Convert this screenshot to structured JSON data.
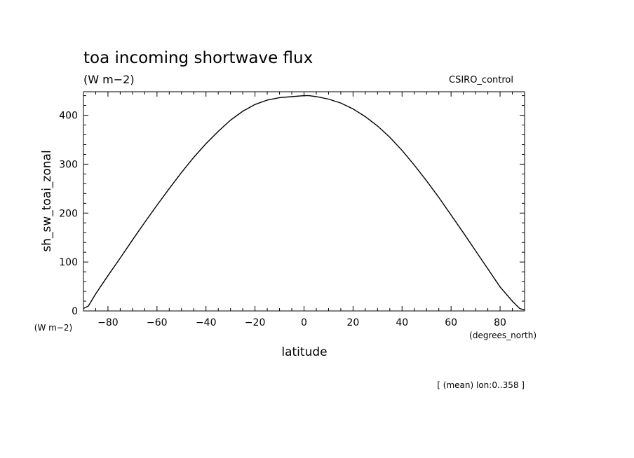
{
  "chart_data": {
    "type": "line",
    "title": "toa incoming shortwave flux",
    "subtitle": "(W m−2)",
    "run_label": "CSIRO_control",
    "ylabel": "sh_sw_toai_zonal",
    "y_units": "(W m−2)",
    "xlabel": "latitude",
    "x_units": "(degrees_north)",
    "footnote": "[ (mean) lon:0..358 ]",
    "xlim": [
      -90,
      90
    ],
    "ylim": [
      0,
      440
    ],
    "x_ticks": [
      -80,
      -60,
      -40,
      -20,
      0,
      20,
      40,
      60,
      80
    ],
    "y_ticks": [
      0,
      100,
      200,
      300,
      400
    ],
    "x_tick_labels": [
      "−80",
      "−60",
      "−40",
      "−20",
      "0",
      "20",
      "40",
      "60",
      "80"
    ],
    "y_tick_labels": [
      "0",
      "100",
      "200",
      "300",
      "400"
    ],
    "grid": false,
    "series": [
      {
        "x": [
          -90,
          -88,
          -85,
          -80,
          -75,
          -70,
          -65,
          -60,
          -55,
          -50,
          -45,
          -40,
          -35,
          -30,
          -25,
          -20,
          -15,
          -10,
          -5,
          0,
          2,
          5,
          10,
          15,
          20,
          25,
          30,
          35,
          40,
          45,
          50,
          55,
          60,
          65,
          70,
          75,
          80,
          85,
          88,
          90
        ],
        "y": [
          5,
          10,
          35,
          72,
          108,
          145,
          181,
          216,
          250,
          283,
          314,
          342,
          367,
          390,
          408,
          422,
          431,
          436,
          438,
          440,
          440,
          438,
          433,
          425,
          413,
          397,
          378,
          355,
          328,
          298,
          266,
          232,
          196,
          160,
          123,
          86,
          49,
          20,
          5,
          2
        ]
      }
    ]
  }
}
